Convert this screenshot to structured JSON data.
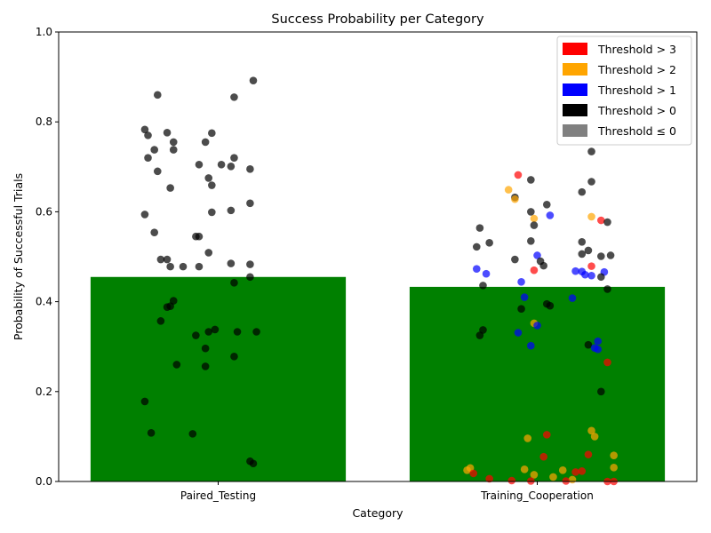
{
  "chart_data": {
    "type": "bar",
    "title": "Success Probability per Category",
    "xlabel": "Category",
    "ylabel": "Probability of Successful Trials",
    "ylim": [
      0,
      1
    ],
    "yticks": [
      "0.0",
      "0.2",
      "0.4",
      "0.6",
      "0.8",
      "1.0"
    ],
    "categories": [
      "Paired_Testing",
      "Training_Cooperation"
    ],
    "values": [
      0.455,
      0.433
    ],
    "bar_color": "#008000",
    "legend_position": "top-right",
    "legend": [
      {
        "label": "Threshold > 3",
        "color": "#ff0000"
      },
      {
        "label": "Threshold > 2",
        "color": "#ffa500"
      },
      {
        "label": "Threshold > 1",
        "color": "#0000ff"
      },
      {
        "label": "Threshold > 0",
        "color": "#000000"
      },
      {
        "label": "Threshold ≤ 0",
        "color": "#808080"
      }
    ],
    "points": [
      {
        "category": 0,
        "jitter": 0.11,
        "y": 0.892,
        "color": "#000000"
      },
      {
        "category": 0,
        "jitter": -0.19,
        "y": 0.86,
        "color": "#000000"
      },
      {
        "category": 0,
        "jitter": 0.05,
        "y": 0.855,
        "color": "#000000"
      },
      {
        "category": 0,
        "jitter": -0.23,
        "y": 0.783,
        "color": "#000000"
      },
      {
        "category": 0,
        "jitter": -0.16,
        "y": 0.776,
        "color": "#000000"
      },
      {
        "category": 0,
        "jitter": -0.02,
        "y": 0.775,
        "color": "#000000"
      },
      {
        "category": 0,
        "jitter": -0.22,
        "y": 0.77,
        "color": "#000000"
      },
      {
        "category": 0,
        "jitter": -0.14,
        "y": 0.755,
        "color": "#000000"
      },
      {
        "category": 0,
        "jitter": -0.04,
        "y": 0.755,
        "color": "#000000"
      },
      {
        "category": 0,
        "jitter": -0.2,
        "y": 0.738,
        "color": "#000000"
      },
      {
        "category": 0,
        "jitter": -0.14,
        "y": 0.738,
        "color": "#000000"
      },
      {
        "category": 0,
        "jitter": -0.22,
        "y": 0.72,
        "color": "#000000"
      },
      {
        "category": 0,
        "jitter": 0.05,
        "y": 0.72,
        "color": "#000000"
      },
      {
        "category": 0,
        "jitter": -0.06,
        "y": 0.705,
        "color": "#000000"
      },
      {
        "category": 0,
        "jitter": 0.01,
        "y": 0.705,
        "color": "#000000"
      },
      {
        "category": 0,
        "jitter": 0.04,
        "y": 0.701,
        "color": "#000000"
      },
      {
        "category": 0,
        "jitter": 0.1,
        "y": 0.695,
        "color": "#000000"
      },
      {
        "category": 0,
        "jitter": -0.19,
        "y": 0.69,
        "color": "#000000"
      },
      {
        "category": 0,
        "jitter": -0.03,
        "y": 0.675,
        "color": "#000000"
      },
      {
        "category": 0,
        "jitter": -0.02,
        "y": 0.659,
        "color": "#000000"
      },
      {
        "category": 0,
        "jitter": -0.15,
        "y": 0.653,
        "color": "#000000"
      },
      {
        "category": 0,
        "jitter": 0.1,
        "y": 0.619,
        "color": "#000000"
      },
      {
        "category": 0,
        "jitter": 0.04,
        "y": 0.603,
        "color": "#000000"
      },
      {
        "category": 0,
        "jitter": -0.02,
        "y": 0.599,
        "color": "#000000"
      },
      {
        "category": 0,
        "jitter": -0.23,
        "y": 0.594,
        "color": "#000000"
      },
      {
        "category": 0,
        "jitter": -0.2,
        "y": 0.554,
        "color": "#000000"
      },
      {
        "category": 0,
        "jitter": -0.07,
        "y": 0.545,
        "color": "#000000"
      },
      {
        "category": 0,
        "jitter": -0.06,
        "y": 0.545,
        "color": "#000000"
      },
      {
        "category": 0,
        "jitter": -0.03,
        "y": 0.509,
        "color": "#000000"
      },
      {
        "category": 0,
        "jitter": -0.18,
        "y": 0.494,
        "color": "#000000"
      },
      {
        "category": 0,
        "jitter": -0.16,
        "y": 0.494,
        "color": "#000000"
      },
      {
        "category": 0,
        "jitter": 0.04,
        "y": 0.485,
        "color": "#000000"
      },
      {
        "category": 0,
        "jitter": 0.1,
        "y": 0.483,
        "color": "#000000"
      },
      {
        "category": 0,
        "jitter": -0.15,
        "y": 0.478,
        "color": "#000000"
      },
      {
        "category": 0,
        "jitter": -0.11,
        "y": 0.478,
        "color": "#000000"
      },
      {
        "category": 0,
        "jitter": -0.06,
        "y": 0.478,
        "color": "#000000"
      },
      {
        "category": 0,
        "jitter": 0.1,
        "y": 0.455,
        "color": "#000000"
      },
      {
        "category": 0,
        "jitter": 0.05,
        "y": 0.442,
        "color": "#000000"
      },
      {
        "category": 0,
        "jitter": -0.14,
        "y": 0.402,
        "color": "#000000"
      },
      {
        "category": 0,
        "jitter": -0.15,
        "y": 0.39,
        "color": "#000000"
      },
      {
        "category": 0,
        "jitter": -0.16,
        "y": 0.388,
        "color": "#000000"
      },
      {
        "category": 0,
        "jitter": -0.18,
        "y": 0.357,
        "color": "#000000"
      },
      {
        "category": 0,
        "jitter": -0.01,
        "y": 0.338,
        "color": "#000000"
      },
      {
        "category": 0,
        "jitter": -0.03,
        "y": 0.333,
        "color": "#000000"
      },
      {
        "category": 0,
        "jitter": 0.06,
        "y": 0.333,
        "color": "#000000"
      },
      {
        "category": 0,
        "jitter": 0.12,
        "y": 0.333,
        "color": "#000000"
      },
      {
        "category": 0,
        "jitter": -0.07,
        "y": 0.325,
        "color": "#000000"
      },
      {
        "category": 0,
        "jitter": -0.04,
        "y": 0.296,
        "color": "#000000"
      },
      {
        "category": 0,
        "jitter": 0.05,
        "y": 0.278,
        "color": "#000000"
      },
      {
        "category": 0,
        "jitter": -0.13,
        "y": 0.26,
        "color": "#000000"
      },
      {
        "category": 0,
        "jitter": -0.04,
        "y": 0.256,
        "color": "#000000"
      },
      {
        "category": 0,
        "jitter": -0.23,
        "y": 0.178,
        "color": "#000000"
      },
      {
        "category": 0,
        "jitter": -0.21,
        "y": 0.108,
        "color": "#000000"
      },
      {
        "category": 0,
        "jitter": -0.08,
        "y": 0.106,
        "color": "#000000"
      },
      {
        "category": 0,
        "jitter": 0.1,
        "y": 0.045,
        "color": "#000000"
      },
      {
        "category": 0,
        "jitter": 0.11,
        "y": 0.04,
        "color": "#000000"
      },
      {
        "category": 1,
        "jitter": 0.17,
        "y": 0.734,
        "color": "#000000"
      },
      {
        "category": 1,
        "jitter": -0.06,
        "y": 0.682,
        "color": "#ff0000"
      },
      {
        "category": 1,
        "jitter": -0.02,
        "y": 0.671,
        "color": "#000000"
      },
      {
        "category": 1,
        "jitter": 0.17,
        "y": 0.667,
        "color": "#000000"
      },
      {
        "category": 1,
        "jitter": -0.09,
        "y": 0.649,
        "color": "#ffa500"
      },
      {
        "category": 1,
        "jitter": 0.14,
        "y": 0.644,
        "color": "#000000"
      },
      {
        "category": 1,
        "jitter": -0.07,
        "y": 0.632,
        "color": "#000000"
      },
      {
        "category": 1,
        "jitter": -0.07,
        "y": 0.628,
        "color": "#ffa500"
      },
      {
        "category": 1,
        "jitter": 0.03,
        "y": 0.616,
        "color": "#000000"
      },
      {
        "category": 1,
        "jitter": -0.02,
        "y": 0.6,
        "color": "#000000"
      },
      {
        "category": 1,
        "jitter": 0.04,
        "y": 0.592,
        "color": "#0000ff"
      },
      {
        "category": 1,
        "jitter": 0.17,
        "y": 0.589,
        "color": "#ffa500"
      },
      {
        "category": 1,
        "jitter": -0.01,
        "y": 0.585,
        "color": "#ffa500"
      },
      {
        "category": 1,
        "jitter": 0.2,
        "y": 0.581,
        "color": "#ff0000"
      },
      {
        "category": 1,
        "jitter": 0.22,
        "y": 0.577,
        "color": "#000000"
      },
      {
        "category": 1,
        "jitter": -0.01,
        "y": 0.57,
        "color": "#000000"
      },
      {
        "category": 1,
        "jitter": -0.18,
        "y": 0.564,
        "color": "#000000"
      },
      {
        "category": 1,
        "jitter": -0.02,
        "y": 0.535,
        "color": "#000000"
      },
      {
        "category": 1,
        "jitter": 0.14,
        "y": 0.533,
        "color": "#000000"
      },
      {
        "category": 1,
        "jitter": -0.15,
        "y": 0.531,
        "color": "#000000"
      },
      {
        "category": 1,
        "jitter": -0.19,
        "y": 0.522,
        "color": "#000000"
      },
      {
        "category": 1,
        "jitter": 0.16,
        "y": 0.514,
        "color": "#000000"
      },
      {
        "category": 1,
        "jitter": 0.14,
        "y": 0.506,
        "color": "#000000"
      },
      {
        "category": 1,
        "jitter": 0.23,
        "y": 0.503,
        "color": "#000000"
      },
      {
        "category": 1,
        "jitter": 0.0,
        "y": 0.503,
        "color": "#0000ff"
      },
      {
        "category": 1,
        "jitter": 0.2,
        "y": 0.501,
        "color": "#000000"
      },
      {
        "category": 1,
        "jitter": -0.07,
        "y": 0.494,
        "color": "#000000"
      },
      {
        "category": 1,
        "jitter": 0.01,
        "y": 0.49,
        "color": "#000000"
      },
      {
        "category": 1,
        "jitter": 0.02,
        "y": 0.48,
        "color": "#000000"
      },
      {
        "category": 1,
        "jitter": 0.17,
        "y": 0.479,
        "color": "#ff0000"
      },
      {
        "category": 1,
        "jitter": -0.19,
        "y": 0.473,
        "color": "#0000ff"
      },
      {
        "category": 1,
        "jitter": -0.01,
        "y": 0.47,
        "color": "#ff0000"
      },
      {
        "category": 1,
        "jitter": 0.12,
        "y": 0.468,
        "color": "#0000ff"
      },
      {
        "category": 1,
        "jitter": 0.14,
        "y": 0.467,
        "color": "#0000ff"
      },
      {
        "category": 1,
        "jitter": 0.21,
        "y": 0.466,
        "color": "#0000ff"
      },
      {
        "category": 1,
        "jitter": -0.16,
        "y": 0.462,
        "color": "#0000ff"
      },
      {
        "category": 1,
        "jitter": 0.15,
        "y": 0.46,
        "color": "#0000ff"
      },
      {
        "category": 1,
        "jitter": 0.17,
        "y": 0.458,
        "color": "#0000ff"
      },
      {
        "category": 1,
        "jitter": 0.2,
        "y": 0.455,
        "color": "#000000"
      },
      {
        "category": 1,
        "jitter": -0.05,
        "y": 0.444,
        "color": "#0000ff"
      },
      {
        "category": 1,
        "jitter": -0.17,
        "y": 0.436,
        "color": "#000000"
      },
      {
        "category": 1,
        "jitter": 0.22,
        "y": 0.428,
        "color": "#000000"
      },
      {
        "category": 1,
        "jitter": -0.04,
        "y": 0.41,
        "color": "#0000ff"
      },
      {
        "category": 1,
        "jitter": 0.11,
        "y": 0.408,
        "color": "#0000ff"
      },
      {
        "category": 1,
        "jitter": 0.03,
        "y": 0.395,
        "color": "#000000"
      },
      {
        "category": 1,
        "jitter": 0.04,
        "y": 0.391,
        "color": "#000000"
      },
      {
        "category": 1,
        "jitter": -0.05,
        "y": 0.384,
        "color": "#000000"
      },
      {
        "category": 1,
        "jitter": -0.01,
        "y": 0.352,
        "color": "#ffa500"
      },
      {
        "category": 1,
        "jitter": 0.0,
        "y": 0.347,
        "color": "#0000ff"
      },
      {
        "category": 1,
        "jitter": -0.17,
        "y": 0.337,
        "color": "#000000"
      },
      {
        "category": 1,
        "jitter": -0.06,
        "y": 0.331,
        "color": "#0000ff"
      },
      {
        "category": 1,
        "jitter": -0.18,
        "y": 0.325,
        "color": "#000000"
      },
      {
        "category": 1,
        "jitter": 0.19,
        "y": 0.312,
        "color": "#0000ff"
      },
      {
        "category": 1,
        "jitter": 0.16,
        "y": 0.304,
        "color": "#000000"
      },
      {
        "category": 1,
        "jitter": -0.02,
        "y": 0.302,
        "color": "#0000ff"
      },
      {
        "category": 1,
        "jitter": 0.18,
        "y": 0.297,
        "color": "#0000ff"
      },
      {
        "category": 1,
        "jitter": 0.19,
        "y": 0.294,
        "color": "#0000ff"
      },
      {
        "category": 1,
        "jitter": 0.22,
        "y": 0.265,
        "color": "#ff0000"
      },
      {
        "category": 1,
        "jitter": 0.2,
        "y": 0.2,
        "color": "#000000"
      },
      {
        "category": 1,
        "jitter": 0.17,
        "y": 0.113,
        "color": "#ffa500"
      },
      {
        "category": 1,
        "jitter": 0.03,
        "y": 0.104,
        "color": "#ff0000"
      },
      {
        "category": 1,
        "jitter": 0.18,
        "y": 0.1,
        "color": "#ffa500"
      },
      {
        "category": 1,
        "jitter": -0.03,
        "y": 0.096,
        "color": "#ffa500"
      },
      {
        "category": 1,
        "jitter": 0.16,
        "y": 0.06,
        "color": "#ff0000"
      },
      {
        "category": 1,
        "jitter": 0.24,
        "y": 0.058,
        "color": "#ffa500"
      },
      {
        "category": 1,
        "jitter": 0.02,
        "y": 0.055,
        "color": "#ff0000"
      },
      {
        "category": 1,
        "jitter": 0.24,
        "y": 0.031,
        "color": "#ffa500"
      },
      {
        "category": 1,
        "jitter": -0.21,
        "y": 0.03,
        "color": "#ffa500"
      },
      {
        "category": 1,
        "jitter": -0.04,
        "y": 0.027,
        "color": "#ffa500"
      },
      {
        "category": 1,
        "jitter": -0.22,
        "y": 0.025,
        "color": "#ffa500"
      },
      {
        "category": 1,
        "jitter": 0.08,
        "y": 0.025,
        "color": "#ffa500"
      },
      {
        "category": 1,
        "jitter": 0.14,
        "y": 0.023,
        "color": "#ff0000"
      },
      {
        "category": 1,
        "jitter": 0.12,
        "y": 0.021,
        "color": "#ff0000"
      },
      {
        "category": 1,
        "jitter": -0.2,
        "y": 0.018,
        "color": "#ff0000"
      },
      {
        "category": 1,
        "jitter": -0.01,
        "y": 0.015,
        "color": "#ffa500"
      },
      {
        "category": 1,
        "jitter": 0.05,
        "y": 0.01,
        "color": "#ffa500"
      },
      {
        "category": 1,
        "jitter": -0.15,
        "y": 0.006,
        "color": "#ff0000"
      },
      {
        "category": 1,
        "jitter": 0.11,
        "y": 0.004,
        "color": "#ffa500"
      },
      {
        "category": 1,
        "jitter": -0.08,
        "y": 0.002,
        "color": "#ff0000"
      },
      {
        "category": 1,
        "jitter": -0.02,
        "y": 0.001,
        "color": "#ff0000"
      },
      {
        "category": 1,
        "jitter": 0.09,
        "y": 0.001,
        "color": "#ff0000"
      },
      {
        "category": 1,
        "jitter": 0.22,
        "y": 0.0,
        "color": "#ff0000"
      },
      {
        "category": 1,
        "jitter": 0.24,
        "y": 0.0,
        "color": "#ff0000"
      }
    ]
  }
}
